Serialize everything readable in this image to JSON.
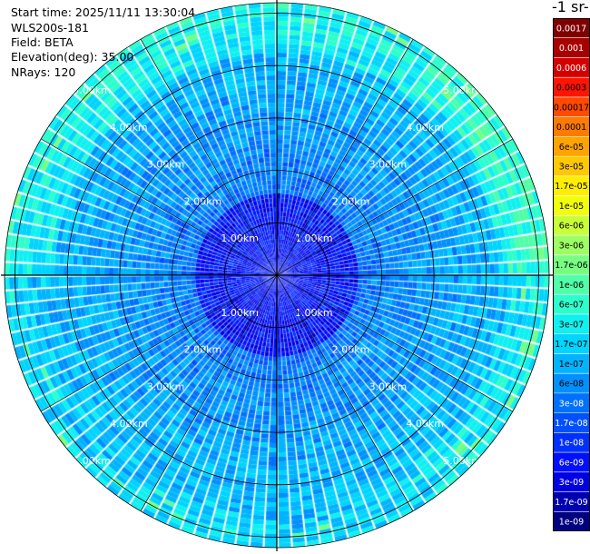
{
  "info": {
    "start_time": "Start time: 2025/11/11 13:30:04",
    "device": "WLS200s-181",
    "field": "Field: BETA",
    "elevation": "Elevation(deg): 35.00",
    "nrays": "NRays: 120"
  },
  "colorbar_title": "-1 sr-",
  "chart_data": {
    "type": "heatmap",
    "projection": "polar",
    "field": "BETA",
    "rays": 120,
    "range_ring_labels": [
      "1.00km",
      "2.00km",
      "3.00km",
      "4.00km",
      "5.00km"
    ],
    "range_ring_values_km": [
      1,
      2,
      3,
      4,
      5
    ],
    "max_range_km": 5.2,
    "colorbar": {
      "labels": [
        "0.0017",
        "0.001",
        "0.0006",
        "0.0003",
        "0.00017",
        "0.0001",
        "6e-05",
        "3e-05",
        "1.7e-05",
        "1e-05",
        "6e-06",
        "3e-06",
        "1.7e-06",
        "1e-06",
        "6e-07",
        "3e-07",
        "1.7e-07",
        "1e-07",
        "6e-08",
        "3e-08",
        "1.7e-08",
        "1e-08",
        "6e-09",
        "3e-09",
        "1.7e-09",
        "1e-09"
      ],
      "colors": [
        "#800000",
        "#a80000",
        "#d40000",
        "#ff1400",
        "#ff4a00",
        "#ff7a00",
        "#ffa300",
        "#ffc800",
        "#ffee00",
        "#f2ff0c",
        "#c8ff3a",
        "#9cff64",
        "#78ff82",
        "#50ffa8",
        "#2cffcc",
        "#10f0f0",
        "#00d4ff",
        "#00b4ff",
        "#0090ff",
        "#0070ff",
        "#0050ff",
        "#0030ff",
        "#0010ff",
        "#0000e0",
        "#0000b0",
        "#000080"
      ]
    },
    "typical_range_beta": [
      1e-09,
      3e-06
    ]
  }
}
